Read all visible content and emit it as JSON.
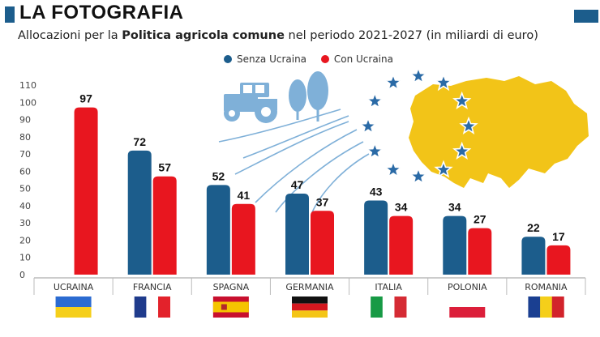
{
  "header": {
    "title": "LA FOTOGRAFIA",
    "subtitle_prefix": "Allocazioni per la ",
    "subtitle_bold": "Politica agricola comune",
    "subtitle_suffix": " nel periodo 2021-2027 (in miliardi di euro)"
  },
  "colors": {
    "senza_ucraina": "#1c5d8c",
    "con_ucraina": "#e8161f",
    "ukraine_map": "#f2c418",
    "eu_star_fill": "#2a6aa6",
    "illustration": "#7fb0d8"
  },
  "chart_data": {
    "type": "bar",
    "title": "LA FOTOGRAFIA",
    "subtitle": "Allocazioni per la Politica agricola comune nel periodo 2021-2027 (in miliardi di euro)",
    "xlabel": "",
    "ylabel": "",
    "ylim": [
      0,
      110
    ],
    "yticks": [
      0,
      10,
      20,
      30,
      40,
      50,
      60,
      70,
      80,
      90,
      100,
      110
    ],
    "grid": false,
    "legend_position": "top-center",
    "categories": [
      "UCRAINA",
      "FRANCIA",
      "SPAGNA",
      "GERMANIA",
      "ITALIA",
      "POLONIA",
      "ROMANIA"
    ],
    "series": [
      {
        "name": "Senza Ucraina",
        "values": [
          null,
          72,
          52,
          47,
          43,
          34,
          22
        ]
      },
      {
        "name": "Con Ucraina",
        "values": [
          97,
          57,
          41,
          37,
          34,
          27,
          17
        ]
      }
    ]
  }
}
